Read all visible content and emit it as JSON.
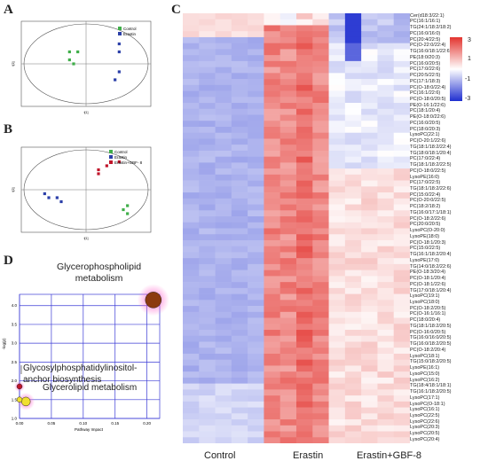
{
  "panels": {
    "A": {
      "letter": "A",
      "legend": [
        "Control",
        "Erastin"
      ],
      "xlabel": "t[1]",
      "ylabel": "t[2]",
      "colors": {
        "Control": "#3fae49",
        "Erastin": "#2b3fa8"
      },
      "points": {
        "Control": [
          [
            -4,
            3
          ],
          [
            -4,
            1
          ],
          [
            -2,
            3
          ],
          [
            -3,
            0
          ]
        ],
        "Erastin": [
          [
            8,
            5
          ],
          [
            8,
            3
          ],
          [
            8,
            -2
          ],
          [
            7,
            -4
          ]
        ]
      }
    },
    "B": {
      "letter": "B",
      "legend": [
        "Control",
        "Erastin",
        "Erastin+GBF- 8"
      ],
      "xlabel": "t[1]",
      "ylabel": "t[2]",
      "colors": {
        "Control": "#3fae49",
        "Erastin": "#2b3fa8",
        "Erastin+GBF- 8": "#c0142a"
      },
      "points": {
        "Control": [
          [
            10,
            -4
          ],
          [
            9,
            -5
          ],
          [
            10,
            -6
          ]
        ],
        "Erastin": [
          [
            -10,
            -1
          ],
          [
            -9,
            -2
          ],
          [
            -7,
            -2
          ],
          [
            -6,
            -3
          ]
        ],
        "Erastin+GBF- 8": [
          [
            3,
            4
          ],
          [
            3,
            5
          ],
          [
            5,
            6
          ],
          [
            8,
            7
          ]
        ]
      }
    },
    "C": {
      "letter": "C",
      "column_groups": [
        "Control",
        "Erastin",
        "Erastin+GBF-8"
      ],
      "scale_ticks": [
        "3",
        "1",
        "-1",
        "-3"
      ],
      "colors": {
        "high": "#e3342f",
        "mid": "#ffffff",
        "low": "#1f2fd0"
      },
      "lipids": [
        "Cer(d18:3/22:1)",
        "PC(16:1/16:1)",
        "TG(24:1/18:2/18:2)",
        "PC(16:0/16:0)",
        "PC(20:4/22:5)",
        "PC(O-22:0/22:4)",
        "TG(16:0/18:1/22:6)",
        "PE(18:0/20:3)",
        "PC(16:0/20:5)",
        "PC(17:0/22:6)",
        "PC(20:5/22:5)",
        "PC(17:1/18:3)",
        "PC(O-18:0/22:4)",
        "PC(16:1/22:6)",
        "PC(O-18:0/20:5)",
        "PE(O-16:1/22:6)",
        "PC(18:1/20:4)",
        "PE(O-18:0/22:6)",
        "PC(16:0/20:5)",
        "PC(18:0/20:3)",
        "LysoPC(22:1)",
        "PC(O-20:1/22:6)",
        "TG(18:1/18:2/22:4)",
        "TG(18:0/18:1/20:4)",
        "PC(17:0/22:4)",
        "TG(18:1/18:2/22:5)",
        "PC(O-18:0/22:5)",
        "LysoPE(16:0)",
        "PC(17:0/22:5)",
        "TG(18:1/18:2/22:6)",
        "PC(15:0/22:4)",
        "PC(O-20:0/22:5)",
        "PC(18:2/18:2)",
        "TG(16:0/17:1/18:1)",
        "PC(O-18:2/22:6)",
        "PC(20:0/20:5)",
        "LysoPC(O-20:0)",
        "LysoPE(18:0)",
        "PC(O-18:1/20:3)",
        "PC(15:0/22:5)",
        "TG(16:1/18:2/20:4)",
        "LysoPE(17:0)",
        "TG(14:0/18:2/22:6)",
        "PE(O-18:3/20:4)",
        "PC(O-18:1/20:4)",
        "PC(O-18:1/22:6)",
        "TG(17:0/18:1/20:4)",
        "LysoPC(19:1)",
        "LysoPC(18:0)",
        "PC(O-18:2/20:5)",
        "PC(O-16:1/16:1)",
        "PC(18:0/20:4)",
        "TG(18:1/18:2/20:5)",
        "PC(O-16:0/20:5)",
        "TG(16:0/16:0/20:5)",
        "TG(16:0/18:2/20:5)",
        "PC(O-18:2/20:4)",
        "LysoPC(18:1)",
        "TG(15:0/18:2/20:5)",
        "LysoPE(16:1)",
        "LysoPC(15:0)",
        "LysoPC(16:2)",
        "TG(18:4/18:1/18:1)",
        "TG(16:1/18:2/20:5)",
        "LysoPC(17:1)",
        "LysoPC(O-18:1)",
        "LysoPC(16:1)",
        "LysoPC(22:5)",
        "LysoPC(22:6)",
        "LysoPC(20:3)",
        "LysoPC(20:5)",
        "LysoPC(20:4)"
      ]
    },
    "D": {
      "letter": "D",
      "xlabel": "Pathway Impact",
      "ylabel": "-log(p)",
      "xlim": [
        0,
        0.22
      ],
      "ylim": [
        1.0,
        4.3
      ],
      "xticks": [
        "0.00",
        "0.05",
        "0.10",
        "0.15",
        "0.20"
      ],
      "yticks": [
        "1.0",
        "1.5",
        "2.0",
        "2.5",
        "3.0",
        "3.5",
        "4.0"
      ],
      "labels": {
        "glycero_phospho": "Glycerophospholipid\nmetabolism",
        "gpi": "Glycosylphosphatidylinositol-\nanchor biosynthesis",
        "glycerolipid": "Glycerolipid metabolism"
      },
      "pathways": [
        {
          "key": "glycero_phospho",
          "impact": 0.21,
          "neglogp": 4.15,
          "color": "#8b3a10"
        },
        {
          "key": "gpi",
          "impact": 0.0,
          "neglogp": 1.85,
          "color": "#c0142a"
        },
        {
          "key": "glycerolipid",
          "impact": 0.01,
          "neglogp": 1.45,
          "color": "#f0e030"
        }
      ]
    }
  },
  "heatmap_labels": {
    "control": "Control",
    "erastin": "Erastin",
    "gbf": "Erastin+GBF-8"
  }
}
